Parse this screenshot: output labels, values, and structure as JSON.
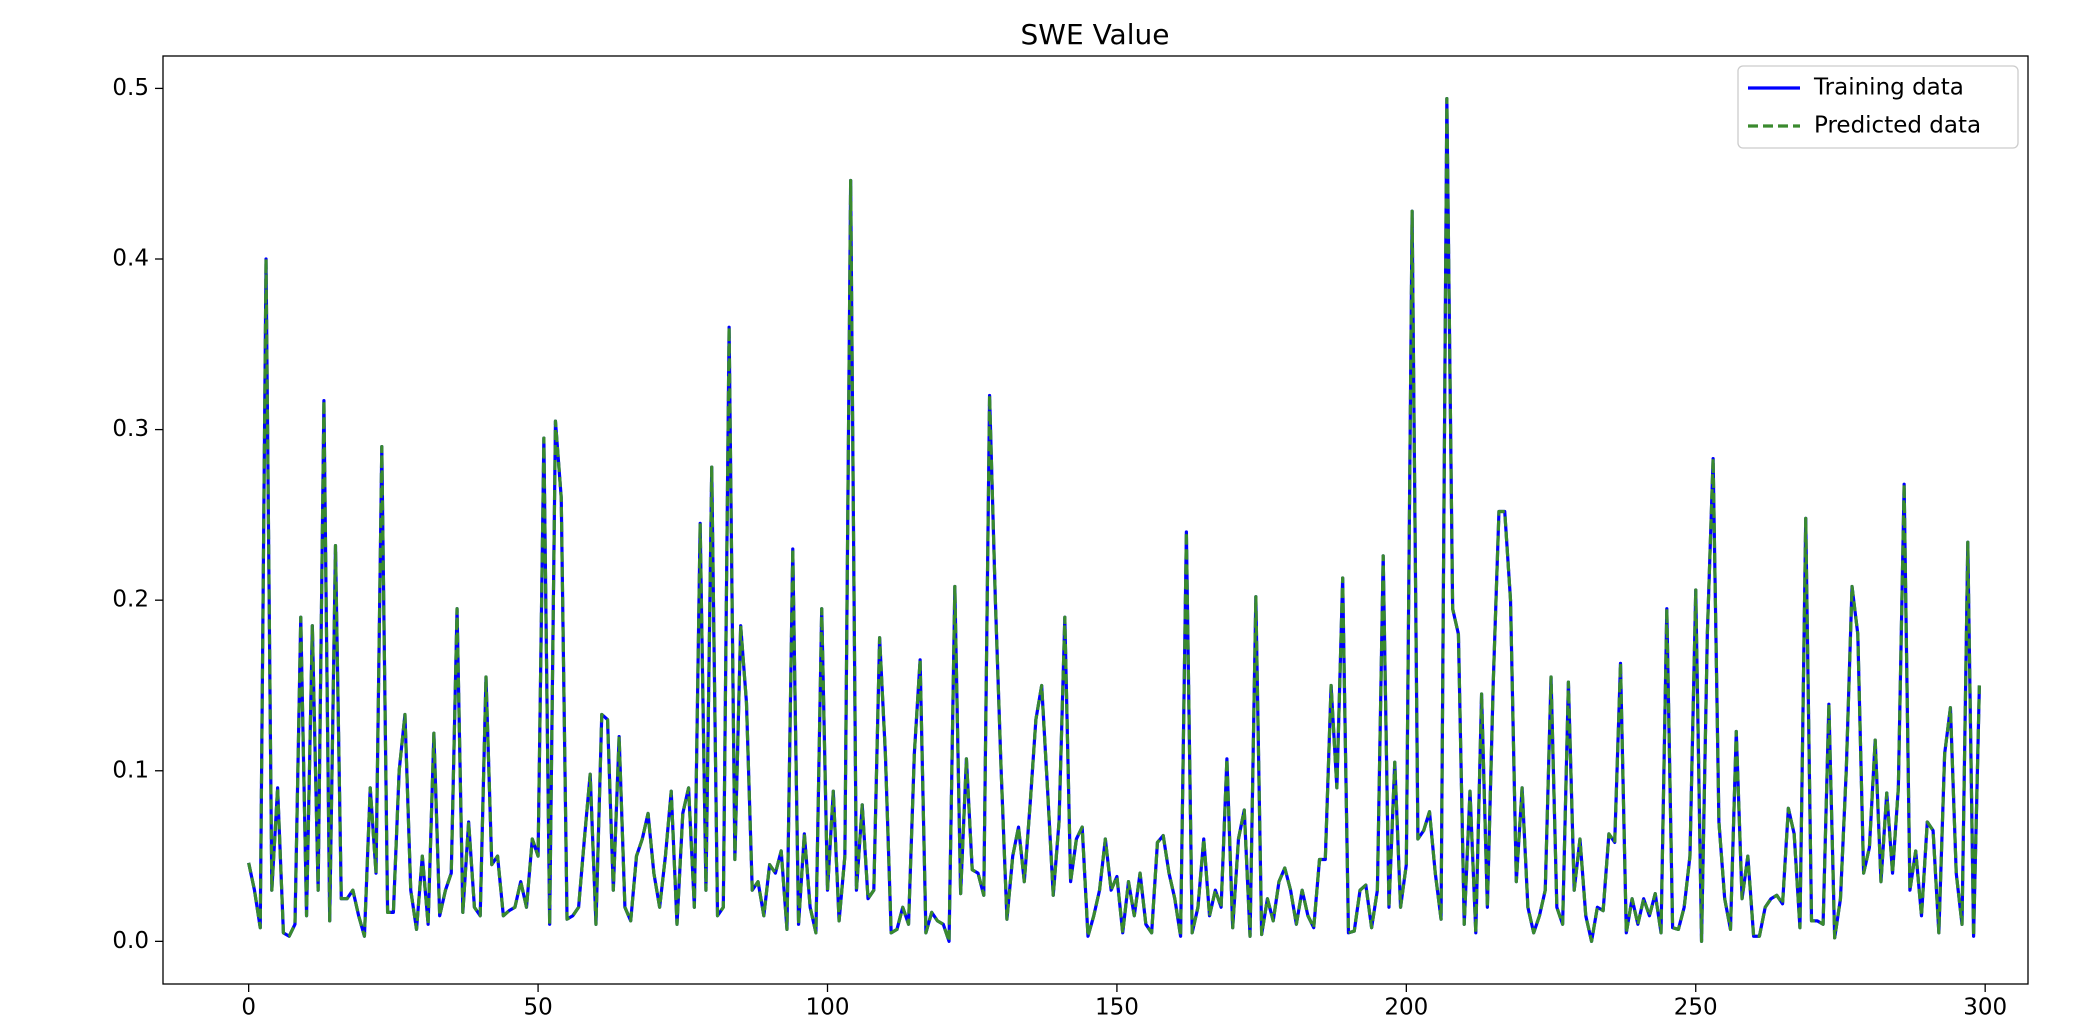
{
  "chart_data": {
    "type": "line",
    "title": "SWE Value",
    "x": [
      0,
      1,
      2,
      3,
      4,
      5,
      6,
      7,
      8,
      9,
      10,
      11,
      12,
      13,
      14,
      15,
      16,
      17,
      18,
      19,
      20,
      21,
      22,
      23,
      24,
      25,
      26,
      27,
      28,
      29,
      30,
      31,
      32,
      33,
      34,
      35,
      36,
      37,
      38,
      39,
      40,
      41,
      42,
      43,
      44,
      45,
      46,
      47,
      48,
      49,
      50,
      51,
      52,
      53,
      54,
      55,
      56,
      57,
      58,
      59,
      60,
      61,
      62,
      63,
      64,
      65,
      66,
      67,
      68,
      69,
      70,
      71,
      72,
      73,
      74,
      75,
      76,
      77,
      78,
      79,
      80,
      81,
      82,
      83,
      84,
      85,
      86,
      87,
      88,
      89,
      90,
      91,
      92,
      93,
      94,
      95,
      96,
      97,
      98,
      99,
      100,
      101,
      102,
      103,
      104,
      105,
      106,
      107,
      108,
      109,
      110,
      111,
      112,
      113,
      114,
      115,
      116,
      117,
      118,
      119,
      120,
      121,
      122,
      123,
      124,
      125,
      126,
      127,
      128,
      129,
      130,
      131,
      132,
      133,
      134,
      135,
      136,
      137,
      138,
      139,
      140,
      141,
      142,
      143,
      144,
      145,
      146,
      147,
      148,
      149,
      150,
      151,
      152,
      153,
      154,
      155,
      156,
      157,
      158,
      159,
      160,
      161,
      162,
      163,
      164,
      165,
      166,
      167,
      168,
      169,
      170,
      171,
      172,
      173,
      174,
      175,
      176,
      177,
      178,
      179,
      180,
      181,
      182,
      183,
      184,
      185,
      186,
      187,
      188,
      189,
      190,
      191,
      192,
      193,
      194,
      195,
      196,
      197,
      198,
      199,
      200,
      201,
      202,
      203,
      204,
      205,
      206,
      207,
      208,
      209,
      210,
      211,
      212,
      213,
      214,
      215,
      216,
      217,
      218,
      219,
      220,
      221,
      222,
      223,
      224,
      225,
      226,
      227,
      228,
      229,
      230,
      231,
      232,
      233,
      234,
      235,
      236,
      237,
      238,
      239,
      240,
      241,
      242,
      243,
      244,
      245,
      246,
      247,
      248,
      249,
      250,
      251,
      252,
      253,
      254,
      255,
      256,
      257,
      258,
      259,
      260,
      261,
      262,
      263,
      264,
      265,
      266,
      267,
      268,
      269,
      270,
      271,
      272,
      273,
      274,
      275,
      276,
      277,
      278,
      279,
      280,
      281,
      282,
      283,
      284,
      285,
      286,
      287,
      288,
      289,
      290,
      291,
      292,
      293,
      294,
      295,
      296,
      297,
      298,
      299
    ],
    "series": [
      {
        "name": "Training data",
        "color": "#0000ff",
        "dash": false,
        "values": [
          0.046,
          0.03,
          0.008,
          0.4,
          0.03,
          0.09,
          0.005,
          0.003,
          0.01,
          0.19,
          0.015,
          0.185,
          0.03,
          0.317,
          0.012,
          0.232,
          0.025,
          0.025,
          0.03,
          0.015,
          0.003,
          0.09,
          0.04,
          0.29,
          0.017,
          0.017,
          0.1,
          0.133,
          0.03,
          0.007,
          0.05,
          0.01,
          0.122,
          0.015,
          0.03,
          0.04,
          0.195,
          0.017,
          0.07,
          0.02,
          0.015,
          0.155,
          0.045,
          0.05,
          0.015,
          0.018,
          0.02,
          0.035,
          0.02,
          0.06,
          0.05,
          0.295,
          0.01,
          0.305,
          0.26,
          0.013,
          0.015,
          0.02,
          0.06,
          0.098,
          0.01,
          0.133,
          0.13,
          0.03,
          0.12,
          0.02,
          0.012,
          0.05,
          0.06,
          0.075,
          0.04,
          0.02,
          0.05,
          0.088,
          0.01,
          0.075,
          0.09,
          0.02,
          0.245,
          0.03,
          0.278,
          0.015,
          0.02,
          0.36,
          0.048,
          0.185,
          0.14,
          0.03,
          0.035,
          0.015,
          0.045,
          0.04,
          0.053,
          0.007,
          0.23,
          0.01,
          0.063,
          0.02,
          0.005,
          0.195,
          0.03,
          0.088,
          0.012,
          0.05,
          0.446,
          0.03,
          0.08,
          0.025,
          0.03,
          0.178,
          0.11,
          0.005,
          0.007,
          0.02,
          0.01,
          0.11,
          0.165,
          0.005,
          0.017,
          0.012,
          0.01,
          0.0,
          0.208,
          0.028,
          0.107,
          0.042,
          0.04,
          0.027,
          0.32,
          0.2,
          0.1,
          0.013,
          0.05,
          0.067,
          0.035,
          0.08,
          0.13,
          0.15,
          0.09,
          0.027,
          0.07,
          0.19,
          0.035,
          0.06,
          0.067,
          0.003,
          0.015,
          0.03,
          0.06,
          0.03,
          0.038,
          0.005,
          0.035,
          0.015,
          0.04,
          0.01,
          0.005,
          0.058,
          0.062,
          0.04,
          0.025,
          0.003,
          0.24,
          0.005,
          0.02,
          0.06,
          0.015,
          0.03,
          0.02,
          0.107,
          0.008,
          0.06,
          0.077,
          0.003,
          0.202,
          0.004,
          0.025,
          0.012,
          0.035,
          0.043,
          0.03,
          0.01,
          0.03,
          0.015,
          0.008,
          0.048,
          0.048,
          0.15,
          0.09,
          0.213,
          0.005,
          0.006,
          0.03,
          0.033,
          0.008,
          0.03,
          0.226,
          0.02,
          0.105,
          0.02,
          0.045,
          0.428,
          0.06,
          0.065,
          0.076,
          0.04,
          0.013,
          0.494,
          0.195,
          0.18,
          0.01,
          0.088,
          0.005,
          0.145,
          0.02,
          0.15,
          0.252,
          0.252,
          0.2,
          0.035,
          0.09,
          0.02,
          0.005,
          0.015,
          0.03,
          0.155,
          0.02,
          0.01,
          0.152,
          0.03,
          0.06,
          0.015,
          0.0,
          0.02,
          0.018,
          0.063,
          0.058,
          0.163,
          0.005,
          0.025,
          0.01,
          0.025,
          0.015,
          0.028,
          0.005,
          0.195,
          0.008,
          0.007,
          0.02,
          0.05,
          0.206,
          0.0,
          0.18,
          0.283,
          0.07,
          0.025,
          0.007,
          0.123,
          0.025,
          0.05,
          0.003,
          0.003,
          0.02,
          0.025,
          0.027,
          0.022,
          0.078,
          0.063,
          0.008,
          0.248,
          0.012,
          0.012,
          0.01,
          0.139,
          0.002,
          0.025,
          0.1,
          0.208,
          0.18,
          0.04,
          0.055,
          0.118,
          0.035,
          0.087,
          0.04,
          0.09,
          0.268,
          0.03,
          0.053,
          0.015,
          0.07,
          0.065,
          0.005,
          0.11,
          0.137,
          0.04,
          0.01,
          0.234,
          0.003,
          0.15
        ]
      },
      {
        "name": "Predicted data",
        "color": "#3a8a2e",
        "dash": true,
        "values": [
          0.046,
          0.03,
          0.008,
          0.4,
          0.03,
          0.09,
          0.005,
          0.003,
          0.01,
          0.19,
          0.015,
          0.185,
          0.03,
          0.317,
          0.012,
          0.232,
          0.025,
          0.025,
          0.03,
          0.015,
          0.003,
          0.09,
          0.04,
          0.29,
          0.017,
          0.017,
          0.1,
          0.133,
          0.03,
          0.007,
          0.05,
          0.01,
          0.122,
          0.015,
          0.03,
          0.04,
          0.195,
          0.017,
          0.07,
          0.02,
          0.015,
          0.155,
          0.045,
          0.05,
          0.015,
          0.018,
          0.02,
          0.035,
          0.02,
          0.06,
          0.05,
          0.295,
          0.01,
          0.305,
          0.26,
          0.013,
          0.015,
          0.02,
          0.06,
          0.098,
          0.01,
          0.133,
          0.13,
          0.03,
          0.12,
          0.02,
          0.012,
          0.05,
          0.06,
          0.075,
          0.04,
          0.02,
          0.05,
          0.088,
          0.01,
          0.075,
          0.09,
          0.02,
          0.245,
          0.03,
          0.278,
          0.015,
          0.02,
          0.36,
          0.048,
          0.185,
          0.14,
          0.03,
          0.035,
          0.015,
          0.045,
          0.04,
          0.053,
          0.007,
          0.23,
          0.01,
          0.063,
          0.02,
          0.005,
          0.195,
          0.03,
          0.088,
          0.012,
          0.05,
          0.446,
          0.03,
          0.08,
          0.025,
          0.03,
          0.178,
          0.11,
          0.005,
          0.007,
          0.02,
          0.01,
          0.11,
          0.165,
          0.005,
          0.017,
          0.012,
          0.01,
          0.0,
          0.208,
          0.028,
          0.107,
          0.042,
          0.04,
          0.027,
          0.32,
          0.2,
          0.1,
          0.013,
          0.05,
          0.067,
          0.035,
          0.08,
          0.13,
          0.15,
          0.09,
          0.027,
          0.07,
          0.19,
          0.035,
          0.06,
          0.067,
          0.003,
          0.015,
          0.03,
          0.06,
          0.03,
          0.038,
          0.005,
          0.035,
          0.015,
          0.04,
          0.01,
          0.005,
          0.058,
          0.062,
          0.04,
          0.025,
          0.003,
          0.24,
          0.005,
          0.02,
          0.06,
          0.015,
          0.03,
          0.02,
          0.107,
          0.008,
          0.06,
          0.077,
          0.003,
          0.202,
          0.004,
          0.025,
          0.012,
          0.035,
          0.043,
          0.03,
          0.01,
          0.03,
          0.015,
          0.008,
          0.048,
          0.048,
          0.15,
          0.09,
          0.213,
          0.005,
          0.006,
          0.03,
          0.033,
          0.008,
          0.03,
          0.226,
          0.02,
          0.105,
          0.02,
          0.045,
          0.428,
          0.06,
          0.065,
          0.076,
          0.04,
          0.013,
          0.494,
          0.195,
          0.18,
          0.01,
          0.088,
          0.005,
          0.145,
          0.02,
          0.15,
          0.252,
          0.252,
          0.2,
          0.035,
          0.09,
          0.02,
          0.005,
          0.015,
          0.03,
          0.155,
          0.02,
          0.01,
          0.152,
          0.03,
          0.06,
          0.015,
          0.0,
          0.02,
          0.018,
          0.063,
          0.058,
          0.163,
          0.005,
          0.025,
          0.01,
          0.025,
          0.015,
          0.028,
          0.005,
          0.195,
          0.008,
          0.007,
          0.02,
          0.05,
          0.206,
          0.0,
          0.18,
          0.283,
          0.07,
          0.025,
          0.007,
          0.123,
          0.025,
          0.05,
          0.003,
          0.003,
          0.02,
          0.025,
          0.027,
          0.022,
          0.078,
          0.063,
          0.008,
          0.248,
          0.012,
          0.012,
          0.01,
          0.139,
          0.002,
          0.025,
          0.1,
          0.208,
          0.18,
          0.04,
          0.055,
          0.118,
          0.035,
          0.087,
          0.04,
          0.09,
          0.268,
          0.03,
          0.053,
          0.015,
          0.07,
          0.065,
          0.005,
          0.11,
          0.137,
          0.04,
          0.01,
          0.234,
          0.003,
          0.15
        ]
      }
    ],
    "xlim": [
      -14.8,
      307.4
    ],
    "xticks": [
      0,
      50,
      100,
      150,
      200,
      250,
      300
    ],
    "ylim": [
      -0.025,
      0.519
    ],
    "yticks": [
      0.0,
      0.1,
      0.2,
      0.3,
      0.4,
      0.5
    ],
    "yticks_labels_note_free": null,
    "legend": "upper right",
    "grid": false
  }
}
